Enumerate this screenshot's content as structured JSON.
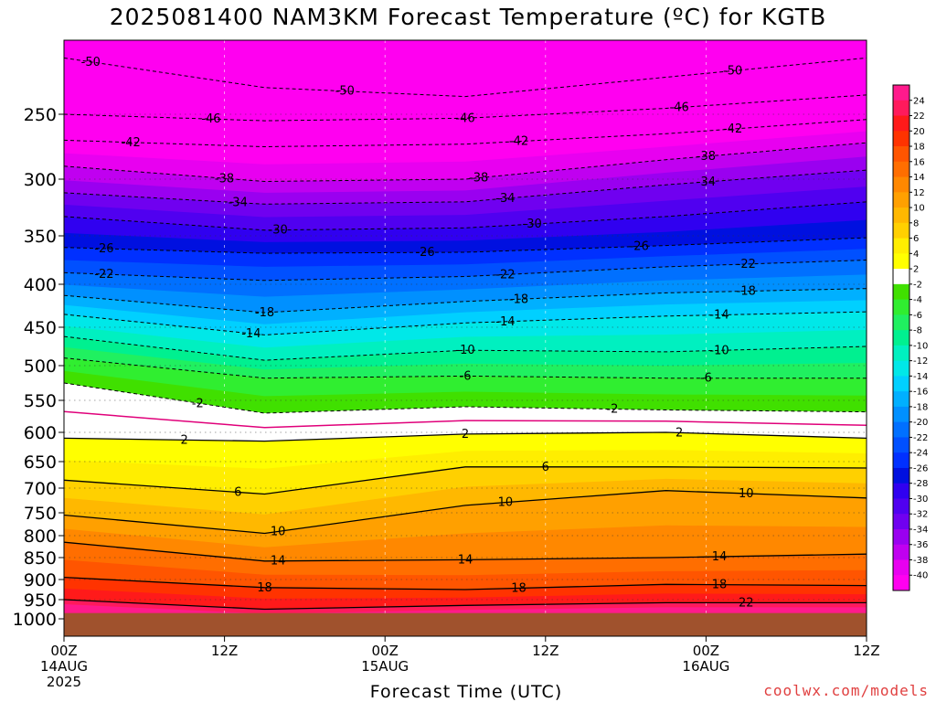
{
  "title": "2025081400 NAM3KM Forecast Temperature (ºC) for KGTB",
  "credit": "coolwx.com/models",
  "chart_data": {
    "type": "contour",
    "title": "2025081400 NAM3KM Forecast Temperature (ºC) for KGTB",
    "xlabel": "Forecast Time (UTC)",
    "ylabel": "",
    "x_range_hours": [
      0,
      60
    ],
    "y_range_hpa": [
      200,
      1040
    ],
    "y_ticks": [
      250,
      300,
      350,
      400,
      450,
      500,
      550,
      600,
      650,
      700,
      750,
      800,
      850,
      900,
      950,
      1000
    ],
    "x_ticks": [
      {
        "hour": 0,
        "lines": [
          "00Z",
          "14AUG",
          "2025"
        ]
      },
      {
        "hour": 12,
        "lines": [
          "12Z"
        ]
      },
      {
        "hour": 24,
        "lines": [
          "00Z",
          "15AUG"
        ]
      },
      {
        "hour": 36,
        "lines": [
          "12Z"
        ]
      },
      {
        "hour": 48,
        "lines": [
          "00Z",
          "16AUG"
        ]
      },
      {
        "hour": 60,
        "lines": [
          "12Z"
        ]
      }
    ],
    "ground_level_hpa": 985,
    "ground_color": "#a0522d",
    "colorbar_levels": [
      "24",
      "22",
      "20",
      "18",
      "16",
      "14",
      "12",
      "10",
      "8",
      "6",
      "4",
      "2",
      "-2",
      "-4",
      "-6",
      "-8",
      "-10",
      "-12",
      "-14",
      "-16",
      "-18",
      "-20",
      "-22",
      "-24",
      "-26",
      "-28",
      "-30",
      "-32",
      "-34",
      "-36",
      "-38",
      "-40"
    ],
    "colorbar_colors": [
      "#ff1a8c",
      "#ff1a5c",
      "#ff1a1a",
      "#ff3300",
      "#ff5500",
      "#ff6e00",
      "#ff8800",
      "#ffa000",
      "#ffb800",
      "#ffd000",
      "#ffee00",
      "#ffff00",
      "#ffffff",
      "#40e000",
      "#30ee30",
      "#20f060",
      "#00f090",
      "#00f0c0",
      "#00e8e8",
      "#00d0ff",
      "#00b0ff",
      "#0090ff",
      "#0070ff",
      "#0050ff",
      "#0030ff",
      "#0010e0",
      "#3000f0",
      "#5000f0",
      "#7000f0",
      "#9a00f0",
      "#c000f0",
      "#e800f0",
      "#ff00f0"
    ],
    "isotherms": [
      {
        "value": -50,
        "pressure": [
          212,
          232,
          238,
          225,
          212
        ],
        "labels": [
          {
            "hour": 2,
            "text": "-50"
          },
          {
            "hour": 21,
            "text": "-50"
          },
          {
            "hour": 50,
            "text": "-50"
          }
        ]
      },
      {
        "value": -46,
        "pressure": [
          250,
          255,
          253,
          246,
          237
        ],
        "labels": [
          {
            "hour": 11,
            "text": "-46"
          },
          {
            "hour": 30,
            "text": "-46"
          },
          {
            "hour": 46,
            "text": "-46"
          }
        ]
      },
      {
        "value": -42,
        "pressure": [
          270,
          275,
          273,
          265,
          254
        ],
        "labels": [
          {
            "hour": 5,
            "text": "-42"
          },
          {
            "hour": 34,
            "text": "-42"
          },
          {
            "hour": 50,
            "text": "-42"
          }
        ]
      },
      {
        "value": -38,
        "pressure": [
          290,
          302,
          300,
          285,
          272
        ],
        "labels": [
          {
            "hour": 12,
            "text": "-38"
          },
          {
            "hour": 31,
            "text": "-38"
          },
          {
            "hour": 48,
            "text": "-38"
          }
        ]
      },
      {
        "value": -34,
        "pressure": [
          312,
          322,
          320,
          305,
          293
        ],
        "labels": [
          {
            "hour": 13,
            "text": "-34"
          },
          {
            "hour": 33,
            "text": "-34"
          },
          {
            "hour": 48,
            "text": "-34"
          }
        ]
      },
      {
        "value": -30,
        "pressure": [
          333,
          345,
          343,
          333,
          320
        ],
        "labels": [
          {
            "hour": 16,
            "text": "-30"
          },
          {
            "hour": 35,
            "text": "-30"
          }
        ]
      },
      {
        "value": -26,
        "pressure": [
          362,
          368,
          367,
          360,
          352
        ],
        "labels": [
          {
            "hour": 3,
            "text": "-26"
          },
          {
            "hour": 27,
            "text": "-26"
          },
          {
            "hour": 43,
            "text": "-26"
          }
        ]
      },
      {
        "value": -22,
        "pressure": [
          388,
          396,
          392,
          382,
          375
        ],
        "labels": [
          {
            "hour": 3,
            "text": "-22"
          },
          {
            "hour": 33,
            "text": "-22"
          },
          {
            "hour": 51,
            "text": "-22"
          }
        ]
      },
      {
        "value": -18,
        "pressure": [
          413,
          433,
          420,
          410,
          405
        ],
        "labels": [
          {
            "hour": 15,
            "text": "-18"
          },
          {
            "hour": 34,
            "text": "-18"
          },
          {
            "hour": 51,
            "text": "-18"
          }
        ]
      },
      {
        "value": -14,
        "pressure": [
          435,
          460,
          445,
          437,
          432
        ],
        "labels": [
          {
            "hour": 14,
            "text": "-14"
          },
          {
            "hour": 33,
            "text": "-14"
          },
          {
            "hour": 49,
            "text": "-14"
          }
        ]
      },
      {
        "value": -10,
        "pressure": [
          462,
          493,
          480,
          482,
          475
        ],
        "labels": [
          {
            "hour": 30,
            "text": "-10"
          },
          {
            "hour": 49,
            "text": "-10"
          }
        ]
      },
      {
        "value": -6,
        "pressure": [
          490,
          518,
          515,
          518,
          518
        ],
        "labels": [
          {
            "hour": 30,
            "text": "-6"
          },
          {
            "hour": 48,
            "text": "-6"
          }
        ]
      },
      {
        "value": -2,
        "pressure": [
          525,
          570,
          560,
          565,
          568
        ],
        "labels": [
          {
            "hour": 10,
            "text": "-2"
          },
          {
            "hour": 41,
            "text": "-2"
          }
        ]
      },
      {
        "value": 2,
        "pressure": [
          610,
          615,
          603,
          600,
          610
        ],
        "labels": [
          {
            "hour": 9,
            "text": "2"
          },
          {
            "hour": 30,
            "text": "2"
          },
          {
            "hour": 46,
            "text": "2"
          }
        ]
      },
      {
        "value": 6,
        "pressure": [
          685,
          712,
          660,
          660,
          662
        ],
        "labels": [
          {
            "hour": 13,
            "text": "6"
          },
          {
            "hour": 36,
            "text": "6"
          }
        ]
      },
      {
        "value": 10,
        "pressure": [
          755,
          795,
          735,
          705,
          720
        ],
        "labels": [
          {
            "hour": 16,
            "text": "10"
          },
          {
            "hour": 33,
            "text": "10"
          },
          {
            "hour": 51,
            "text": "10"
          }
        ]
      },
      {
        "value": 14,
        "pressure": [
          815,
          858,
          855,
          850,
          842
        ],
        "labels": [
          {
            "hour": 16,
            "text": "14"
          },
          {
            "hour": 30,
            "text": "14"
          },
          {
            "hour": 49,
            "text": "14"
          }
        ]
      },
      {
        "value": 18,
        "pressure": [
          895,
          920,
          925,
          912,
          915
        ],
        "labels": [
          {
            "hour": 15,
            "text": "18"
          },
          {
            "hour": 34,
            "text": "18"
          },
          {
            "hour": 49,
            "text": "18"
          }
        ]
      },
      {
        "value": 22,
        "pressure": [
          950,
          975,
          965,
          958,
          958
        ],
        "labels": [
          {
            "hour": 51,
            "text": "22"
          }
        ]
      }
    ]
  },
  "labels": {
    "xlabel": "Forecast Time (UTC)"
  }
}
